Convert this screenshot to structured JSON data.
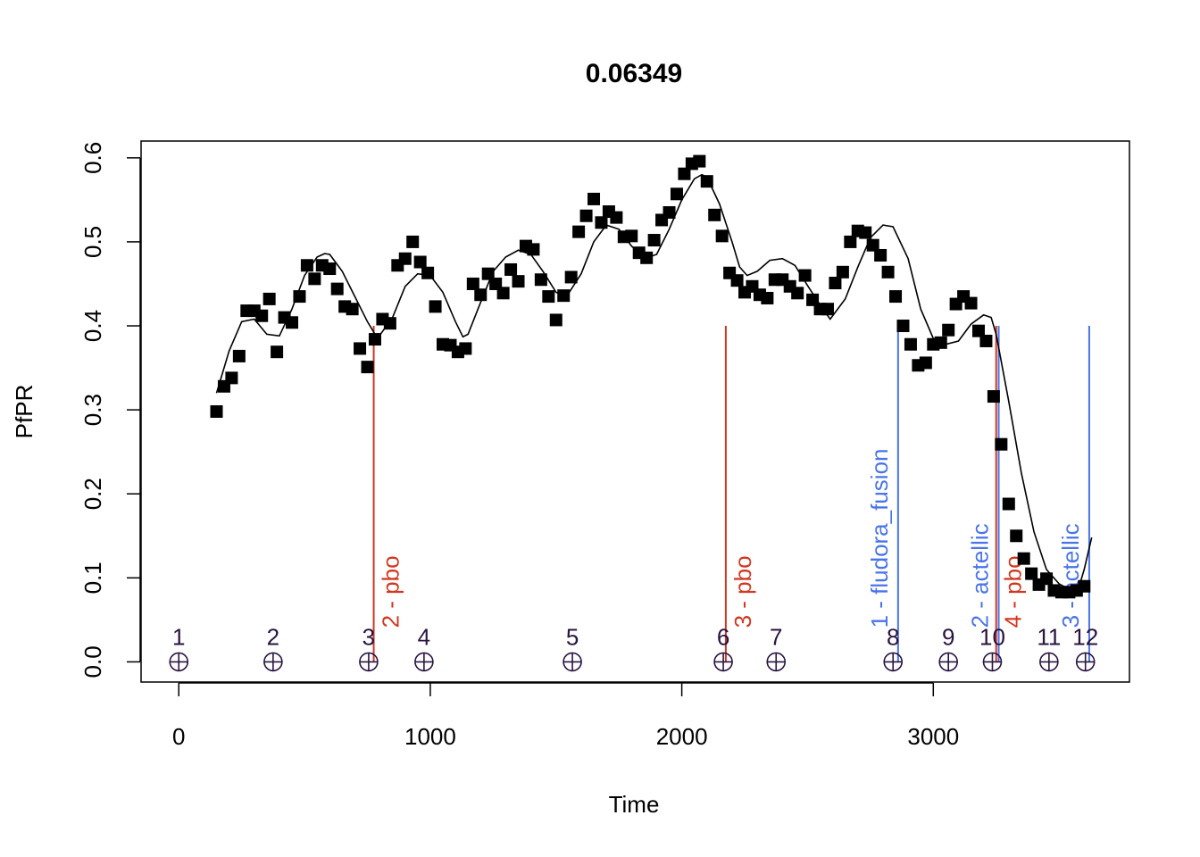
{
  "chart_data": {
    "type": "scatter",
    "title": "0.06349",
    "xlabel": "Time",
    "ylabel": "PfPR",
    "xlim": [
      -150,
      3780
    ],
    "ylim": [
      -0.024,
      0.62
    ],
    "xticks": [
      0,
      1000,
      2000,
      3000
    ],
    "yticks": [
      0.0,
      0.1,
      0.2,
      0.3,
      0.4,
      0.5,
      0.6
    ],
    "grid": false,
    "legend": "none",
    "colors": {
      "points": "#000000",
      "fit": "#000000",
      "pbo": "#d2371f",
      "actellic": "#4a74e8",
      "events": "#2a1440",
      "box": "#000000"
    },
    "series": [
      {
        "marker": "filled-square",
        "x": [
          150,
          180,
          210,
          240,
          270,
          300,
          330,
          360,
          390,
          420,
          450,
          480,
          510,
          540,
          570,
          600,
          630,
          660,
          690,
          720,
          750,
          780,
          810,
          840,
          870,
          900,
          930,
          960,
          990,
          1020,
          1050,
          1080,
          1110,
          1140,
          1170,
          1200,
          1230,
          1260,
          1290,
          1320,
          1350,
          1380,
          1410,
          1440,
          1470,
          1500,
          1530,
          1560,
          1590,
          1620,
          1650,
          1680,
          1710,
          1740,
          1770,
          1800,
          1830,
          1860,
          1890,
          1920,
          1950,
          1980,
          2010,
          2040,
          2070,
          2100,
          2130,
          2160,
          2190,
          2220,
          2250,
          2280,
          2310,
          2340,
          2370,
          2400,
          2430,
          2460,
          2490,
          2520,
          2550,
          2580,
          2610,
          2640,
          2670,
          2700,
          2730,
          2760,
          2790,
          2820,
          2850,
          2880,
          2910,
          2940,
          2970,
          3000,
          3030,
          3060,
          3090,
          3120,
          3150,
          3180,
          3210,
          3240,
          3270,
          3300,
          3330,
          3360,
          3390,
          3420,
          3450,
          3480,
          3510,
          3540,
          3570,
          3600
        ],
        "values": [
          0.298,
          0.328,
          0.338,
          0.364,
          0.418,
          0.418,
          0.412,
          0.432,
          0.369,
          0.41,
          0.404,
          0.435,
          0.472,
          0.456,
          0.472,
          0.468,
          0.444,
          0.423,
          0.42,
          0.373,
          0.351,
          0.384,
          0.408,
          0.403,
          0.472,
          0.48,
          0.5,
          0.476,
          0.463,
          0.423,
          0.378,
          0.377,
          0.369,
          0.373,
          0.45,
          0.437,
          0.462,
          0.45,
          0.439,
          0.467,
          0.453,
          0.495,
          0.491,
          0.455,
          0.435,
          0.407,
          0.436,
          0.458,
          0.512,
          0.531,
          0.551,
          0.523,
          0.536,
          0.529,
          0.506,
          0.507,
          0.487,
          0.481,
          0.502,
          0.526,
          0.535,
          0.557,
          0.581,
          0.593,
          0.596,
          0.572,
          0.532,
          0.507,
          0.463,
          0.454,
          0.44,
          0.447,
          0.437,
          0.433,
          0.455,
          0.455,
          0.447,
          0.439,
          0.46,
          0.431,
          0.42,
          0.42,
          0.451,
          0.464,
          0.5,
          0.513,
          0.511,
          0.496,
          0.484,
          0.464,
          0.435,
          0.4,
          0.378,
          0.353,
          0.356,
          0.378,
          0.38,
          0.395,
          0.426,
          0.435,
          0.427,
          0.394,
          0.382,
          0.316,
          0.259,
          0.188,
          0.15,
          0.123,
          0.105,
          0.092,
          0.099,
          0.085,
          0.083,
          0.083,
          0.085,
          0.09
        ]
      },
      {
        "marker": "line",
        "x": [
          150,
          200,
          250,
          300,
          350,
          400,
          450,
          500,
          550,
          580,
          600,
          650,
          700,
          750,
          790,
          850,
          900,
          950,
          1000,
          1050,
          1100,
          1130,
          1150,
          1200,
          1250,
          1300,
          1350,
          1400,
          1450,
          1500,
          1540,
          1600,
          1650,
          1700,
          1750,
          1800,
          1850,
          1900,
          1950,
          2000,
          2050,
          2080,
          2100,
          2150,
          2200,
          2230,
          2260,
          2300,
          2350,
          2400,
          2450,
          2500,
          2550,
          2590,
          2650,
          2700,
          2750,
          2800,
          2840,
          2900,
          2950,
          3000,
          3050,
          3100,
          3150,
          3200,
          3230,
          3250,
          3300,
          3350,
          3400,
          3450,
          3500,
          3530,
          3560,
          3580,
          3600,
          3630
        ],
        "values": [
          0.32,
          0.37,
          0.405,
          0.408,
          0.39,
          0.388,
          0.42,
          0.46,
          0.482,
          0.486,
          0.485,
          0.465,
          0.435,
          0.405,
          0.385,
          0.41,
          0.447,
          0.462,
          0.46,
          0.44,
          0.405,
          0.387,
          0.39,
          0.428,
          0.465,
          0.482,
          0.49,
          0.485,
          0.464,
          0.44,
          0.434,
          0.462,
          0.5,
          0.52,
          0.515,
          0.495,
          0.48,
          0.485,
          0.515,
          0.55,
          0.575,
          0.58,
          0.577,
          0.545,
          0.5,
          0.47,
          0.46,
          0.465,
          0.478,
          0.48,
          0.472,
          0.448,
          0.425,
          0.408,
          0.432,
          0.47,
          0.505,
          0.52,
          0.518,
          0.48,
          0.42,
          0.385,
          0.378,
          0.382,
          0.402,
          0.413,
          0.41,
          0.39,
          0.31,
          0.225,
          0.155,
          0.11,
          0.093,
          0.088,
          0.084,
          0.09,
          0.11,
          0.148
        ]
      }
    ],
    "interventions": [
      {
        "x": 775,
        "label": "2 - pbo",
        "kind": "pbo"
      },
      {
        "x": 2175,
        "label": "3 - pbo",
        "kind": "pbo"
      },
      {
        "x": 3250,
        "label": "4 - pbo",
        "kind": "pbo"
      },
      {
        "x": 2860,
        "label": "1 - fludora_fusion",
        "kind": "actellic"
      },
      {
        "x": 3260,
        "label": "2 - actellic",
        "kind": "actellic"
      },
      {
        "x": 3620,
        "label": "3 - actellic",
        "kind": "actellic"
      }
    ],
    "events": [
      {
        "x": 0,
        "y": 0.0,
        "label": "1"
      },
      {
        "x": 375,
        "y": 0.0,
        "label": "2"
      },
      {
        "x": 755,
        "y": 0.0,
        "label": "3"
      },
      {
        "x": 975,
        "y": 0.0,
        "label": "4"
      },
      {
        "x": 1565,
        "y": 0.0,
        "label": "5"
      },
      {
        "x": 2165,
        "y": 0.0,
        "label": "6"
      },
      {
        "x": 2375,
        "y": 0.0,
        "label": "7"
      },
      {
        "x": 2840,
        "y": 0.0,
        "label": "8"
      },
      {
        "x": 3060,
        "y": 0.0,
        "label": "9"
      },
      {
        "x": 3235,
        "y": 0.0,
        "label": "10"
      },
      {
        "x": 3460,
        "y": 0.0,
        "label": "11"
      },
      {
        "x": 3605,
        "y": 0.0,
        "label": "12"
      }
    ]
  }
}
